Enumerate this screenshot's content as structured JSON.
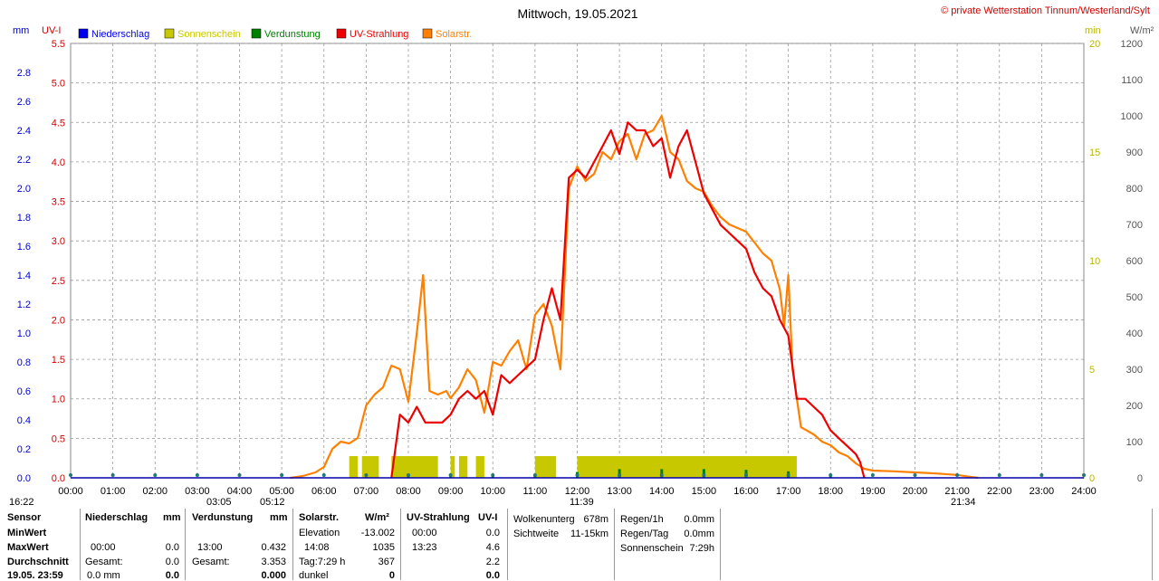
{
  "chart_data": {
    "type": "line",
    "title": "Mittwoch, 19.05.2021",
    "copyright": "© private Wetterstation Tinnum/Westerland/Sylt",
    "x_ticks": [
      "00:00",
      "01:00",
      "02:00",
      "03:00",
      "04:00",
      "05:00",
      "06:00",
      "07:00",
      "08:00",
      "09:00",
      "10:00",
      "11:00",
      "12:00",
      "13:00",
      "14:00",
      "15:00",
      "16:00",
      "17:00",
      "18:00",
      "19:00",
      "20:00",
      "21:00",
      "22:00",
      "23:00",
      "24:00"
    ],
    "xlim": [
      0,
      24
    ],
    "axes": {
      "mm": {
        "label": "mm",
        "ticks": [
          "0.0",
          "0.2",
          "0.4",
          "0.6",
          "0.8",
          "1.0",
          "1.2",
          "1.4",
          "1.6",
          "1.8",
          "2.0",
          "2.2",
          "2.4",
          "2.6",
          "2.8"
        ],
        "lim": [
          0,
          3.0
        ],
        "color": "#0000cc"
      },
      "uvi": {
        "label": "UV-I",
        "ticks": [
          "0.0",
          "0.5",
          "1.0",
          "1.5",
          "2.0",
          "2.5",
          "3.0",
          "3.5",
          "4.0",
          "4.5",
          "5.0",
          "5.5"
        ],
        "lim": [
          0,
          5.5
        ],
        "color": "#d40000"
      },
      "min": {
        "label": "min",
        "ticks": [
          "0",
          "5",
          "10",
          "15",
          "20"
        ],
        "lim": [
          0,
          20
        ],
        "color": "#b8b800"
      },
      "wm2": {
        "label": "W/m²",
        "ticks": [
          "0",
          "100",
          "200",
          "300",
          "400",
          "500",
          "600",
          "700",
          "800",
          "900",
          "1000",
          "1100",
          "1200"
        ],
        "lim": [
          0,
          1200
        ],
        "color": "#555555"
      }
    },
    "legend": [
      {
        "name": "Niederschlag",
        "color": "#0000ee"
      },
      {
        "name": "Sonnenschein",
        "color": "#c8c800"
      },
      {
        "name": "Verdunstung",
        "color": "#008000"
      },
      {
        "name": "UV-Strahlung",
        "color": "#ee0000"
      },
      {
        "name": "Solarstr.",
        "color": "#ff8000"
      }
    ],
    "series": [
      {
        "name": "Solarstr.",
        "axis": "wm2",
        "color": "#ff8000",
        "x": [
          5.2,
          5.5,
          5.8,
          6.0,
          6.2,
          6.4,
          6.6,
          6.8,
          7.0,
          7.2,
          7.4,
          7.6,
          7.8,
          8.0,
          8.2,
          8.35,
          8.5,
          8.7,
          8.9,
          9.0,
          9.2,
          9.4,
          9.6,
          9.8,
          10.0,
          10.2,
          10.4,
          10.6,
          10.8,
          11.0,
          11.2,
          11.4,
          11.6,
          11.8,
          12.0,
          12.2,
          12.4,
          12.6,
          12.8,
          13.0,
          13.2,
          13.4,
          13.6,
          13.8,
          14.0,
          14.2,
          14.4,
          14.6,
          14.8,
          15.0,
          15.2,
          15.4,
          15.6,
          15.8,
          16.0,
          16.2,
          16.4,
          16.6,
          16.8,
          16.9,
          17.0,
          17.1,
          17.3,
          17.6,
          17.8,
          18.0,
          18.2,
          18.4,
          18.6,
          18.8,
          19.0,
          19.5,
          20.0,
          20.5,
          21.0,
          21.3,
          21.5
        ],
        "values": [
          0,
          5,
          15,
          30,
          80,
          100,
          95,
          110,
          200,
          230,
          250,
          310,
          300,
          210,
          400,
          560,
          240,
          230,
          240,
          220,
          250,
          300,
          270,
          180,
          320,
          310,
          350,
          380,
          300,
          450,
          480,
          420,
          300,
          800,
          860,
          820,
          840,
          900,
          880,
          930,
          950,
          880,
          950,
          960,
          1000,
          900,
          880,
          820,
          800,
          790,
          750,
          720,
          700,
          690,
          680,
          650,
          620,
          600,
          520,
          420,
          560,
          300,
          140,
          120,
          100,
          90,
          70,
          60,
          40,
          25,
          20,
          18,
          15,
          12,
          8,
          3,
          0
        ]
      },
      {
        "name": "UV-Strahlung",
        "axis": "uvi",
        "color": "#ee0000",
        "x": [
          7.6,
          7.8,
          8.0,
          8.2,
          8.4,
          8.6,
          8.8,
          9.0,
          9.2,
          9.4,
          9.6,
          9.8,
          10.0,
          10.2,
          10.4,
          10.6,
          10.8,
          11.0,
          11.2,
          11.4,
          11.6,
          11.8,
          12.0,
          12.2,
          12.4,
          12.6,
          12.8,
          13.0,
          13.2,
          13.4,
          13.6,
          13.8,
          14.0,
          14.2,
          14.4,
          14.6,
          14.8,
          15.0,
          15.2,
          15.4,
          15.6,
          15.8,
          16.0,
          16.2,
          16.4,
          16.6,
          16.8,
          17.0,
          17.2,
          17.4,
          17.6,
          17.8,
          18.0,
          18.2,
          18.4,
          18.6,
          18.7,
          18.8
        ],
        "values": [
          0,
          0.8,
          0.7,
          0.9,
          0.7,
          0.7,
          0.7,
          0.8,
          1.0,
          1.1,
          1.0,
          1.1,
          0.8,
          1.3,
          1.2,
          1.3,
          1.4,
          1.5,
          2.0,
          2.4,
          2.0,
          3.8,
          3.9,
          3.8,
          4.0,
          4.2,
          4.4,
          4.1,
          4.5,
          4.4,
          4.4,
          4.2,
          4.3,
          3.8,
          4.2,
          4.4,
          4.0,
          3.6,
          3.4,
          3.2,
          3.1,
          3.0,
          2.9,
          2.6,
          2.4,
          2.3,
          2.0,
          1.8,
          1.0,
          1.0,
          0.9,
          0.8,
          0.6,
          0.5,
          0.4,
          0.3,
          0.2,
          0
        ]
      },
      {
        "name": "Sonnenschein",
        "axis": "min",
        "color": "#c8c800",
        "type": "bar",
        "intervals": [
          [
            6.6,
            6.8
          ],
          [
            6.9,
            7.3
          ],
          [
            7.6,
            8.7
          ],
          [
            9.0,
            9.1
          ],
          [
            9.2,
            9.4
          ],
          [
            9.6,
            9.8
          ],
          [
            11.0,
            11.5
          ],
          [
            12.0,
            17.2
          ]
        ],
        "values": [
          1,
          1,
          1,
          1,
          1,
          1,
          1,
          1
        ]
      },
      {
        "name": "Verdunstung",
        "axis": "mm",
        "color": "#008000",
        "type": "spike",
        "x": [
          7.0,
          8.0,
          9.0,
          10.0,
          11.0,
          12.0,
          13.0,
          14.0,
          15.0,
          16.0,
          17.0,
          18.0,
          19.0
        ],
        "values": [
          0.005,
          0.015,
          0.02,
          0.022,
          0.02,
          0.04,
          0.06,
          0.06,
          0.06,
          0.055,
          0.045,
          0.01,
          0.0
        ]
      }
    ],
    "markers": [
      {
        "text": "16:22"
      },
      {
        "text": "03:05"
      },
      {
        "text": "05:12"
      },
      {
        "text": "11:39"
      },
      {
        "text": "21:34"
      }
    ],
    "grid": true
  },
  "table": {
    "sensor": {
      "h": "Sensor",
      "min": "MinWert",
      "max": "MaxWert",
      "avg": "Durchschnitt",
      "date": "19.05. 23:59"
    },
    "nied": {
      "h": "Niederschlag",
      "u": "mm",
      "max_t": "00:00",
      "max_v": "0.0",
      "sum_l": "Gesamt:",
      "sum_v": "0.0",
      "last_t": "0.0 mm",
      "last_v": "0.0"
    },
    "verd": {
      "h": "Verdunstung",
      "u": "mm",
      "max_t": "13:00",
      "max_v": "0.432",
      "sum_l": "Gesamt:",
      "sum_v": "3.353",
      "last_v": "0.000"
    },
    "solar": {
      "h": "Solarstr.",
      "u": "W/m²",
      "elev_l": "Elevation",
      "elev_v": "-13.002",
      "max_t": "14:08",
      "max_v": "1035",
      "day_l": "Tag:7:29 h",
      "day_v": "367",
      "dark_l": "dunkel",
      "dark_v": "0"
    },
    "uv": {
      "h": "UV-Strahlung",
      "u": "UV-I",
      "min_t": "00:00",
      "min_v": "0.0",
      "max_t": "13:23",
      "max_v": "4.6",
      "avg_v": "2.2",
      "last_v": "0.0"
    },
    "wolke": {
      "l1": "Wolkenunterg",
      "v1": "678m",
      "l2": "Sichtweite",
      "v2": "11-15km"
    },
    "regen": {
      "l1": "Regen/1h",
      "v1": "0.0mm",
      "l2": "Regen/Tag",
      "v2": "0.0mm",
      "l3": "Sonnenschein",
      "v3": "7:29h"
    }
  }
}
